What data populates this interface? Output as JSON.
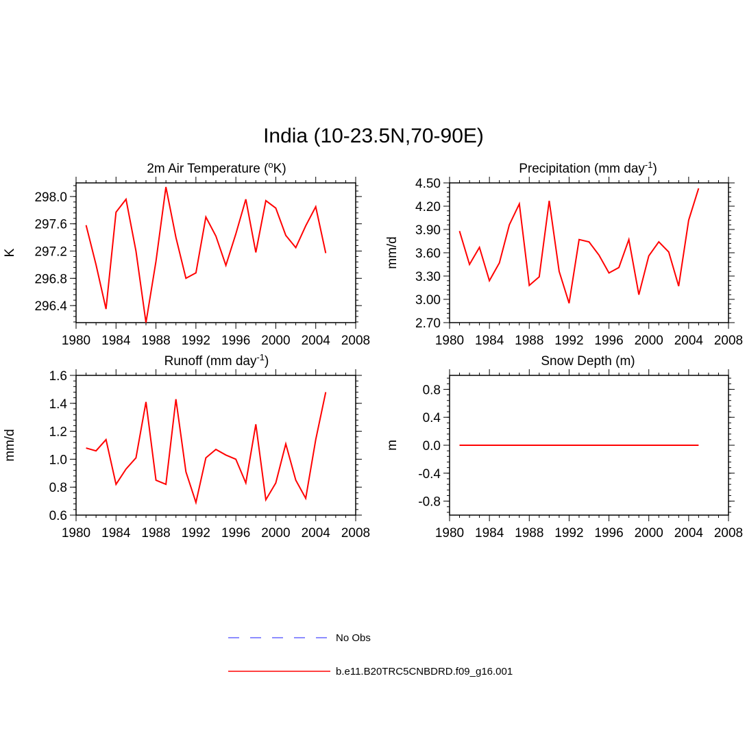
{
  "title": "India (10-23.5N,70-90E)",
  "legend": [
    {
      "label": "No Obs",
      "color": "#6666ff",
      "dash": true
    },
    {
      "label": "b.e11.B20TRC5CNBDRD.f09_g16.001",
      "color": "#ff0000",
      "dash": false
    }
  ],
  "chart_data": [
    {
      "type": "line",
      "title_main": "2m Air Temperature (",
      "title_sup1": "o",
      "title_after": "K)",
      "ylabel": "K",
      "xlim": [
        1980,
        2008
      ],
      "ylim": [
        296.15,
        298.2
      ],
      "xticks": [
        1980,
        1984,
        1988,
        1992,
        1996,
        2000,
        2004,
        2008
      ],
      "yticks": [
        296.4,
        296.8,
        297.2,
        297.6,
        298.0
      ],
      "ytick_labels": [
        "296.4",
        "296.8",
        "297.2",
        "297.6",
        "298.0"
      ],
      "series": [
        {
          "color": "#ff0000",
          "x": [
            1981,
            1982,
            1983,
            1984,
            1985,
            1986,
            1987,
            1988,
            1989,
            1990,
            1991,
            1992,
            1993,
            1994,
            1995,
            1996,
            1997,
            1998,
            1999,
            2000,
            2001,
            2002,
            2003,
            2004,
            2005
          ],
          "values": [
            297.58,
            297.0,
            296.35,
            297.77,
            297.96,
            297.2,
            296.15,
            297.05,
            298.14,
            297.4,
            296.8,
            296.88,
            297.7,
            297.42,
            296.99,
            297.45,
            297.96,
            297.18,
            297.94,
            297.83,
            297.43,
            297.25,
            297.57,
            297.85,
            297.17
          ]
        }
      ]
    },
    {
      "type": "line",
      "title_main": "Precipitation (mm day",
      "title_sup1": "-1",
      "title_after": ")",
      "ylabel": "mm/d",
      "xlim": [
        1980,
        2008
      ],
      "ylim": [
        2.7,
        4.5
      ],
      "xticks": [
        1980,
        1984,
        1988,
        1992,
        1996,
        2000,
        2004,
        2008
      ],
      "yticks": [
        2.7,
        3.0,
        3.3,
        3.6,
        3.9,
        4.2,
        4.5
      ],
      "ytick_labels": [
        "2.70",
        "3.00",
        "3.30",
        "3.60",
        "3.90",
        "4.20",
        "4.50"
      ],
      "series": [
        {
          "color": "#ff0000",
          "x": [
            1981,
            1982,
            1983,
            1984,
            1985,
            1986,
            1987,
            1988,
            1989,
            1990,
            1991,
            1992,
            1993,
            1994,
            1995,
            1996,
            1997,
            1998,
            1999,
            2000,
            2001,
            2002,
            2003,
            2004,
            2005
          ],
          "values": [
            3.88,
            3.45,
            3.67,
            3.24,
            3.47,
            3.96,
            4.23,
            3.18,
            3.29,
            4.27,
            3.36,
            2.95,
            3.77,
            3.74,
            3.57,
            3.34,
            3.41,
            3.77,
            3.06,
            3.56,
            3.74,
            3.61,
            3.17,
            4.02,
            4.43
          ]
        }
      ]
    },
    {
      "type": "line",
      "title_main": "Runoff (mm day",
      "title_sup1": "-1",
      "title_after": ")",
      "ylabel": "mm/d",
      "xlim": [
        1980,
        2008
      ],
      "ylim": [
        0.6,
        1.6
      ],
      "xticks": [
        1980,
        1984,
        1988,
        1992,
        1996,
        2000,
        2004,
        2008
      ],
      "yticks": [
        0.6,
        0.8,
        1.0,
        1.2,
        1.4,
        1.6
      ],
      "ytick_labels": [
        "0.6",
        "0.8",
        "1.0",
        "1.2",
        "1.4",
        "1.6"
      ],
      "series": [
        {
          "color": "#ff0000",
          "x": [
            1981,
            1982,
            1983,
            1984,
            1985,
            1986,
            1987,
            1988,
            1989,
            1990,
            1991,
            1992,
            1993,
            1994,
            1995,
            1996,
            1997,
            1998,
            1999,
            2000,
            2001,
            2002,
            2003,
            2004,
            2005
          ],
          "values": [
            1.08,
            1.06,
            1.14,
            0.82,
            0.93,
            1.01,
            1.41,
            0.85,
            0.82,
            1.43,
            0.91,
            0.69,
            1.01,
            1.07,
            1.03,
            1.0,
            0.83,
            1.25,
            0.71,
            0.83,
            1.11,
            0.85,
            0.72,
            1.14,
            1.48
          ]
        }
      ]
    },
    {
      "type": "line",
      "title_main": "Snow Depth (m)",
      "title_sup1": "",
      "title_after": "",
      "ylabel": "m",
      "xlim": [
        1980,
        2008
      ],
      "ylim": [
        -1.0,
        1.0
      ],
      "xticks": [
        1980,
        1984,
        1988,
        1992,
        1996,
        2000,
        2004,
        2008
      ],
      "yticks": [
        -0.8,
        -0.4,
        0.0,
        0.4,
        0.8
      ],
      "ytick_labels": [
        "-0.8",
        "-0.4",
        "0.0",
        "0.4",
        "0.8"
      ],
      "series": [
        {
          "color": "#ff0000",
          "x": [
            1981,
            2005
          ],
          "values": [
            0.0,
            0.0
          ]
        }
      ]
    }
  ]
}
